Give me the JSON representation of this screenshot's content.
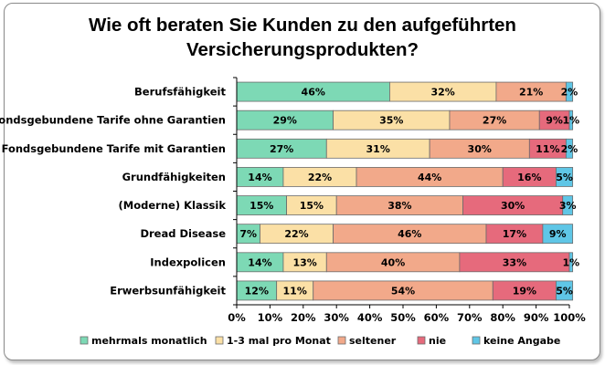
{
  "chart_data": {
    "type": "bar",
    "orientation": "horizontal",
    "stacked": true,
    "title": "Wie oft beraten Sie Kunden zu den aufgeführten Versicherungsprodukten?",
    "title_lines": [
      "Wie oft beraten Sie Kunden zu den aufgeführten",
      "Versicherungsprodukten?"
    ],
    "categories": [
      "Berufsfähigkeit",
      "Fondsgebundene Tarife ohne Garantien",
      "Fondsgebundene Tarife mit Garantien",
      "Grundfähigkeiten",
      "(Moderne) Klassik",
      "Dread Disease",
      "Indexpolicen",
      "Erwerbsunfähigkeit"
    ],
    "series": [
      {
        "name": "mehrmals monatlich",
        "color": "#7dd9b5",
        "values": [
          46,
          29,
          27,
          14,
          15,
          7,
          14,
          12
        ]
      },
      {
        "name": "1-3 mal pro Monat",
        "color": "#fbe0a6",
        "values": [
          32,
          35,
          31,
          22,
          15,
          22,
          13,
          11
        ]
      },
      {
        "name": "seltener",
        "color": "#f2a98a",
        "values": [
          21,
          27,
          30,
          44,
          38,
          46,
          40,
          54
        ]
      },
      {
        "name": "nie",
        "color": "#e66a7c",
        "values": [
          0,
          9,
          11,
          16,
          30,
          17,
          33,
          19
        ]
      },
      {
        "name": "keine Angabe",
        "color": "#5fc6e6",
        "values": [
          2,
          1,
          2,
          5,
          3,
          9,
          1,
          5
        ]
      }
    ],
    "labels": [
      [
        "46%",
        "32%",
        "21%",
        "",
        "2%"
      ],
      [
        "29%",
        "35%",
        "27%",
        "9%",
        "1%"
      ],
      [
        "27%",
        "31%",
        "30%",
        "11%",
        "2%"
      ],
      [
        "14%",
        "22%",
        "44%",
        "16%",
        "5%"
      ],
      [
        "15%",
        "15%",
        "38%",
        "30%",
        "3%"
      ],
      [
        "7%",
        "22%",
        "46%",
        "17%",
        "9%"
      ],
      [
        "14%",
        "13%",
        "40%",
        "33%",
        "1%"
      ],
      [
        "12%",
        "11%",
        "54%",
        "19%",
        "5%"
      ]
    ],
    "xlim": [
      0,
      100
    ],
    "xticks": [
      "0%",
      "10%",
      "20%",
      "30%",
      "40%",
      "50%",
      "60%",
      "70%",
      "80%",
      "90%",
      "100%"
    ],
    "grid": false,
    "legend_position": "bottom"
  }
}
